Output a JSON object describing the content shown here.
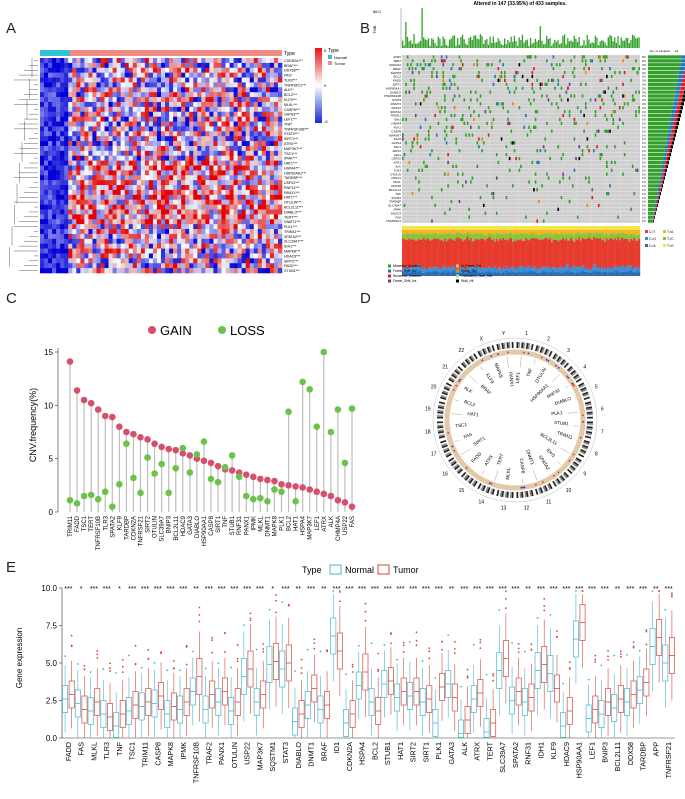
{
  "panels": {
    "a": "A",
    "b": "B",
    "c": "C",
    "d": "D",
    "e": "E"
  },
  "heatmap": {
    "genes": [
      "CDKN2A***",
      "BRAF***",
      "DDX58***",
      "FAS*",
      "TLR3***",
      "TNFRSF21***",
      "ALK**",
      "BCL2***",
      "KLF9***",
      "MLKL***",
      "CASP8***",
      "GATA3***",
      "LEF1***",
      "TNF*",
      "TNFRSF10B***",
      "STAT3***",
      "SIRT1***",
      "ATRX***",
      "MAP3K7***",
      "TSC1***",
      "IPMK***",
      "HAT1***",
      "HSPA4***",
      "HSP90AA1***",
      "TARDBP***",
      "USP22***",
      "RNF31***",
      "PANX1***",
      "HAT1***",
      "OTULIN***",
      "BCL2L11***",
      "DIABLO***",
      "TERT***",
      "DNMT1***",
      "PLK1***",
      "TRIM11***",
      "SPATA2***",
      "SLC39A7***",
      "IDH1***",
      "MAPK8***",
      "HDAC9***",
      "SIRT2***",
      "FADD***",
      "STUB1***"
    ],
    "legend_title": "Type",
    "legend_normal": "Normal",
    "legend_tumor": "Tumor",
    "scale_top": "5",
    "scale_mid": "0",
    "scale_bottom": "-5",
    "normal_color": "#2ec4d6",
    "tumor_color": "#f08c84"
  },
  "oncoplot": {
    "title": "Altered in 147 (33.95%) of 433 samples.",
    "tmb_label": "TMB",
    "tmb_max": "86.0",
    "side_title": "No. of samples",
    "side_max": "24",
    "genes": [
      "ATRX",
      "TERT",
      "CDKN2A",
      "BRAF",
      "MAPK8",
      "BCL2",
      "FADD",
      "SIRT1",
      "HSP90AA1",
      "DIABLO",
      "TNFRSF10B",
      "STAT3",
      "DNMT1",
      "RNF31",
      "SPATA2",
      "TRIM11",
      "IDH1",
      "HSPA4",
      "PLK1",
      "CASP8",
      "MAP3K7",
      "KLF9",
      "GATA3",
      "TSC1",
      "SIRT2",
      "LEF1",
      "USP22",
      "HAT1",
      "ALK",
      "TLR3",
      "OTULIN",
      "PANX1",
      "MLKL",
      "DDX58",
      "BCL2L11",
      "TNF",
      "STUB1",
      "TARDBP",
      "SLC39A7",
      "IPMK",
      "HDAC9",
      "FAS",
      "TNFRSF21"
    ],
    "pcts": [
      "5%",
      "4%",
      "3%",
      "3%",
      "2%",
      "2%",
      "2%",
      "2%",
      "2%",
      "2%",
      "2%",
      "2%",
      "2%",
      "2%",
      "1%",
      "1%",
      "1%",
      "1%",
      "1%",
      "1%",
      "1%",
      "1%",
      "1%",
      "1%",
      "1%",
      "1%",
      "1%",
      "1%",
      "1%",
      "1%",
      "1%",
      "1%",
      "1%",
      "1%",
      "1%",
      "1%",
      "1%",
      "1%",
      "1%",
      "1%",
      "1%",
      "1%",
      "1%"
    ],
    "legend": [
      "Missense_Mutation",
      "Frame_Shift_Del",
      "Nonsense_Mutation",
      "Frame_Shift_Ins",
      "In_Frame_Del",
      "Splice_Site",
      "Translation_Start_Site",
      "Multi_Hit"
    ],
    "legend_colors": [
      "#33a02c",
      "#1f78b4",
      "#e31a1c",
      "#6a3d9a",
      "#fdbf6f",
      "#ff7f00",
      "#b2df8a",
      "#000000"
    ],
    "titv": [
      "C>T",
      "C>G",
      "C>A",
      "T>A",
      "T>C",
      "T>G"
    ],
    "titv_colors": [
      "#e63b2e",
      "#3a8fd4",
      "#2a6db5",
      "#f3b51b",
      "#8ac33f",
      "#f6e04b"
    ]
  },
  "chart_data": [
    {
      "type": "scatter",
      "title": "",
      "ylabel": "CNV.frequency(%)",
      "xlabel": "",
      "ylim": [
        0,
        15
      ],
      "yticks": [
        "0",
        "5",
        "10",
        "15"
      ],
      "legend": [
        "GAIN",
        "LOSS"
      ],
      "legend_position": "top",
      "colors": {
        "GAIN": "#d6506b",
        "LOSS": "#6cc24a"
      },
      "categories": [
        "TRIM11",
        "FADD",
        "TSC1",
        "TERT",
        "TNFRSF10B",
        "TLR3",
        "SPATA2",
        "KLF9",
        "TARDBP",
        "CDKN2A",
        "TNFRSF21",
        "SIRT2",
        "OTULIN",
        "SLC39A7",
        "BNIP3",
        "BCL2L11",
        "HDAC9",
        "GATA3",
        "DIABLO",
        "HSP90AA1",
        "CASP8",
        "SIRT1",
        "TNF",
        "STUB1",
        "RNF31",
        "PANX1",
        "IPMK",
        "MLKL",
        "DNMT1",
        "MAPK8",
        "PLK1",
        "BCL2",
        "HAT1",
        "HSPA4",
        "MAP3K7",
        "LEF1",
        "ATRX",
        "ALK",
        "CHMP4A",
        "USP22",
        "FAS"
      ],
      "series": [
        {
          "name": "GAIN",
          "values": [
            14.1,
            11.4,
            10.5,
            10.2,
            9.6,
            9.0,
            8.9,
            8.0,
            7.5,
            7.3,
            7.0,
            6.8,
            6.4,
            6.1,
            5.9,
            5.8,
            5.5,
            5.3,
            5.0,
            4.8,
            4.6,
            4.3,
            4.0,
            3.9,
            3.7,
            3.5,
            3.3,
            3.1,
            3.0,
            2.9,
            2.6,
            2.5,
            2.4,
            2.3,
            2.1,
            1.9,
            1.7,
            1.5,
            1.1,
            0.9,
            0.5
          ]
        },
        {
          "name": "LOSS",
          "values": [
            1.1,
            0.8,
            1.5,
            1.6,
            1.2,
            1.9,
            0.5,
            2.6,
            6.4,
            3.2,
            1.8,
            5.1,
            3.6,
            4.5,
            1.8,
            4.1,
            6.0,
            3.7,
            5.4,
            6.6,
            3.1,
            2.8,
            4.2,
            5.3,
            3.3,
            1.5,
            1.2,
            1.3,
            1.0,
            2.1,
            1.9,
            9.4,
            1.0,
            12.2,
            11.5,
            8.0,
            15.0,
            7.5,
            9.6,
            4.6,
            9.7
          ]
        }
      ]
    },
    {
      "type": "box",
      "title": "",
      "ylabel": "Gene expression",
      "xlabel": "",
      "ylim": [
        0,
        10
      ],
      "yticks": [
        "0.0",
        "2.5",
        "5.0",
        "7.5",
        "10.0"
      ],
      "legend_title": "Type",
      "legend": [
        "Normal",
        "Tumor"
      ],
      "legend_position": "top",
      "colors": {
        "Normal": "#44b4d6",
        "Tumor": "#d64a3a"
      },
      "categories": [
        "FADD",
        "FAS",
        "MLKL",
        "TLR3",
        "TNF",
        "TSC1",
        "TRIM11",
        "CASP8",
        "MAPK8",
        "IPMK",
        "TNFRSF10B",
        "TRAF2",
        "PANX1",
        "OTULIN",
        "USP22",
        "MAP3K7",
        "SQSTM1",
        "STAT3",
        "DIABLO",
        "DNMT1",
        "BRAF",
        "ID1",
        "CDKN2A",
        "HSPA4",
        "BCL2",
        "STUB1",
        "HAT1",
        "SIRT2",
        "SIRT1",
        "PLK1",
        "GATA3",
        "ALK",
        "ATRX",
        "TERT",
        "SLC39A7",
        "SPATA2",
        "RNF31",
        "IDH1",
        "KLF9",
        "HDAC9",
        "HSP90AA1",
        "LEF1",
        "BNIP3",
        "BCL2L11",
        "DDX58",
        "TARDBP",
        "APP",
        "TNFRSF21"
      ],
      "significance": [
        "***",
        "*",
        "***",
        "***",
        "*",
        "***",
        "***",
        "***",
        "***",
        "***",
        "**",
        "***",
        "***",
        "***",
        "***",
        "***",
        "*",
        "***",
        "**",
        "***",
        "**",
        "***",
        "***",
        "***",
        "***",
        "***",
        "***",
        "***",
        "***",
        "***",
        "**",
        "***",
        "***",
        "***",
        "***",
        "***",
        "**",
        "***",
        "***",
        "***",
        "***",
        "***",
        "***",
        "**",
        "***",
        "***",
        "**",
        "***"
      ],
      "series": [
        {
          "name": "Normal",
          "medians": [
            2.6,
            2.3,
            1.8,
            1.6,
            0.8,
            1.8,
            2.1,
            2.3,
            1.6,
            1.9,
            3.1,
            1.9,
            2.4,
            1.8,
            4.1,
            2.4,
            4.9,
            4.6,
            1.1,
            2.2,
            1.9,
            6.8,
            1.0,
            3.5,
            2.4,
            3.6,
            2.7,
            2.8,
            2.4,
            1.0,
            3.6,
            0.3,
            2.6,
            0.4,
            4.5,
            2.5,
            2.4,
            4.5,
            4.3,
            0.8,
            6.6,
            1.3,
            1.6,
            2.0,
            2.4,
            3.2,
            6.1,
            5.0
          ]
        },
        {
          "name": "Tumor",
          "medians": [
            2.9,
            1.9,
            2.4,
            1.4,
            1.6,
            2.2,
            2.4,
            2.8,
            2.1,
            2.4,
            4.1,
            2.9,
            3.1,
            2.4,
            4.6,
            2.9,
            5.1,
            5.0,
            1.6,
            3.3,
            2.2,
            5.8,
            1.6,
            4.4,
            1.8,
            3.8,
            3.1,
            3.1,
            2.6,
            3.4,
            2.7,
            1.2,
            3.0,
            1.0,
            5.3,
            3.1,
            2.7,
            4.9,
            3.3,
            1.8,
            7.7,
            1.9,
            2.4,
            2.6,
            2.9,
            3.7,
            6.7,
            5.5
          ]
        }
      ]
    }
  ],
  "circos": {
    "chromosomes": [
      "1",
      "2",
      "3",
      "4",
      "5",
      "6",
      "7",
      "8",
      "9",
      "10",
      "11",
      "12",
      "13",
      "14",
      "15",
      "16",
      "17",
      "18",
      "19",
      "20",
      "21",
      "22",
      "X",
      "Y"
    ],
    "genes": [
      "LEF1",
      "TNF",
      "OTULIN",
      "HSP90AA1",
      "RNF31",
      "DIABLO",
      "PLK1",
      "STUB1",
      "TRIM11",
      "BCL2L11",
      "IDH1",
      "SPATA2",
      "DNMT1",
      "CASP8",
      "MLKL",
      "TERT",
      "ATRX",
      "FADD",
      "SIRT1",
      "FAS",
      "TSC1",
      "HAT1",
      "BCL2",
      "ALK",
      "BRAF",
      "KLF9",
      "MAPK8",
      "PANX1"
    ]
  }
}
